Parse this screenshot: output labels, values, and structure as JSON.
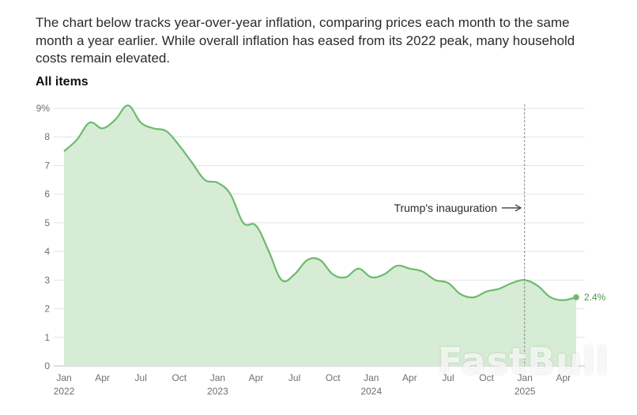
{
  "intro_text": "The chart below tracks year-over-year inflation, comparing prices each month to the same month a year earlier. While overall inflation has eased from its 2022 peak, many household costs remain elevated.",
  "watermark_text": "FastBull",
  "chart_data": {
    "type": "area",
    "title": "All items",
    "xlabel": "",
    "ylabel": "",
    "ylim": [
      0,
      9
    ],
    "y_ticks": [
      "0",
      "1",
      "2",
      "3",
      "4",
      "5",
      "6",
      "7",
      "8",
      "9%"
    ],
    "x_ticks": [
      {
        "month": "Jan",
        "year": "2022",
        "index": 0
      },
      {
        "month": "Apr",
        "year": "",
        "index": 3
      },
      {
        "month": "Jul",
        "year": "",
        "index": 6
      },
      {
        "month": "Oct",
        "year": "",
        "index": 9
      },
      {
        "month": "Jan",
        "year": "2023",
        "index": 12
      },
      {
        "month": "Apr",
        "year": "",
        "index": 15
      },
      {
        "month": "Jul",
        "year": "",
        "index": 18
      },
      {
        "month": "Oct",
        "year": "",
        "index": 21
      },
      {
        "month": "Jan",
        "year": "2024",
        "index": 24
      },
      {
        "month": "Apr",
        "year": "",
        "index": 27
      },
      {
        "month": "Jul",
        "year": "",
        "index": 30
      },
      {
        "month": "Oct",
        "year": "",
        "index": 33
      },
      {
        "month": "Jan",
        "year": "2025",
        "index": 36
      },
      {
        "month": "Apr",
        "year": "",
        "index": 39
      }
    ],
    "x": [
      "2022-01",
      "2022-02",
      "2022-03",
      "2022-04",
      "2022-05",
      "2022-06",
      "2022-07",
      "2022-08",
      "2022-09",
      "2022-10",
      "2022-11",
      "2022-12",
      "2023-01",
      "2023-02",
      "2023-03",
      "2023-04",
      "2023-05",
      "2023-06",
      "2023-07",
      "2023-08",
      "2023-09",
      "2023-10",
      "2023-11",
      "2023-12",
      "2024-01",
      "2024-02",
      "2024-03",
      "2024-04",
      "2024-05",
      "2024-06",
      "2024-07",
      "2024-08",
      "2024-09",
      "2024-10",
      "2024-11",
      "2024-12",
      "2025-01",
      "2025-02",
      "2025-03",
      "2025-04",
      "2025-05"
    ],
    "series": [
      {
        "values": [
          7.5,
          7.9,
          8.5,
          8.3,
          8.6,
          9.1,
          8.5,
          8.3,
          8.2,
          7.7,
          7.1,
          6.5,
          6.4,
          6.0,
          5.0,
          4.9,
          4.0,
          3.0,
          3.2,
          3.7,
          3.7,
          3.2,
          3.1,
          3.4,
          3.1,
          3.2,
          3.5,
          3.4,
          3.3,
          3.0,
          2.9,
          2.5,
          2.4,
          2.6,
          2.7,
          2.9,
          3.0,
          2.8,
          2.4,
          2.3,
          2.4
        ],
        "color": "#6cbb6c",
        "fill": "#d6ecd4"
      }
    ],
    "end_label": "2.4%",
    "annotation": {
      "text": "Trump's inauguration",
      "arrow": "→",
      "at": "2025-01"
    },
    "grid": true
  }
}
